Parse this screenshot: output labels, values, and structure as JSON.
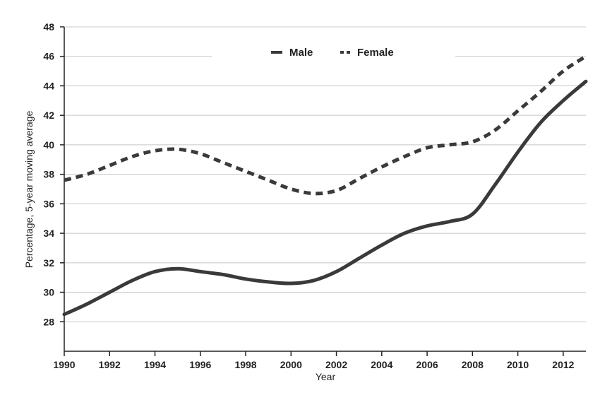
{
  "chart_data": {
    "type": "line",
    "title": "",
    "xlabel": "Year",
    "ylabel": "Percentage, 5-year moving average",
    "xlim": [
      1990,
      2013
    ],
    "ylim": [
      26,
      48
    ],
    "x_ticks": [
      "1990",
      "1992",
      "1994",
      "1996",
      "1998",
      "2000",
      "2002",
      "2004",
      "2006",
      "2008",
      "2010",
      "2012"
    ],
    "y_ticks": [
      "28",
      "30",
      "32",
      "34",
      "36",
      "38",
      "40",
      "42",
      "44",
      "46",
      "48"
    ],
    "grid": "horizontal",
    "legend_position": "top-center",
    "series": [
      {
        "name": "Male",
        "style": "solid",
        "color": "#3a3a3a",
        "x": [
          1990,
          1991,
          1992,
          1993,
          1994,
          1995,
          1996,
          1997,
          1998,
          1999,
          2000,
          2001,
          2002,
          2003,
          2004,
          2005,
          2006,
          2007,
          2008,
          2009,
          2010,
          2011,
          2012,
          2013
        ],
        "values": [
          28.5,
          29.2,
          30.0,
          30.8,
          31.4,
          31.6,
          31.4,
          31.2,
          30.9,
          30.7,
          30.6,
          30.8,
          31.4,
          32.3,
          33.2,
          34.0,
          34.5,
          34.8,
          35.3,
          37.3,
          39.5,
          41.5,
          43.0,
          44.3
        ]
      },
      {
        "name": "Female",
        "style": "dashed",
        "color": "#3a3a3a",
        "x": [
          1990,
          1991,
          1992,
          1993,
          1994,
          1995,
          1996,
          1997,
          1998,
          1999,
          2000,
          2001,
          2002,
          2003,
          2004,
          2005,
          2006,
          2007,
          2008,
          2009,
          2010,
          2011,
          2012,
          2013
        ],
        "values": [
          37.6,
          38.0,
          38.6,
          39.2,
          39.6,
          39.7,
          39.4,
          38.8,
          38.2,
          37.6,
          37.0,
          36.7,
          36.9,
          37.7,
          38.5,
          39.2,
          39.8,
          40.0,
          40.2,
          41.0,
          42.3,
          43.6,
          45.0,
          46.0
        ]
      }
    ]
  }
}
